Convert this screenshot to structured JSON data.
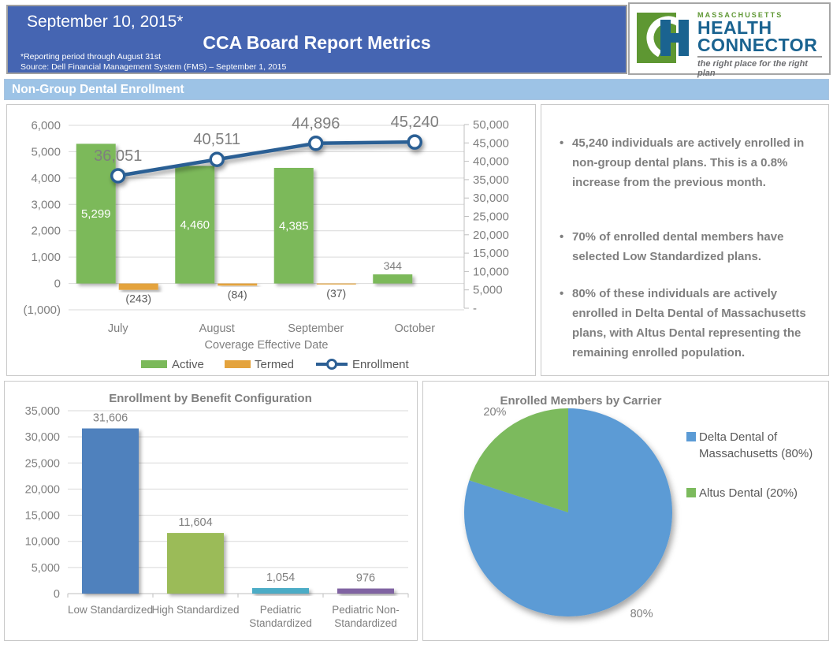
{
  "header": {
    "date": "September 10, 2015*",
    "title": "CCA Board Report Metrics",
    "footnote1": "*Reporting period through August 31st",
    "footnote2": "Source: Dell Financial Management System (FMS) – September 1, 2015",
    "bg_color": "#4565B2"
  },
  "logo": {
    "region": "MASSACHUSETTS",
    "line1": "HEALTH",
    "line2": "CONNECTOR",
    "tagline": "the right place for the right plan",
    "green": "#5E9732",
    "blue": "#1A6390"
  },
  "section_banner": {
    "label": "Non-Group Dental Enrollment",
    "bg_color": "#9DC3E6"
  },
  "bullets": [
    "45,240 individuals are actively enrolled in non-group dental plans. This is a 0.8% increase from the previous month.",
    "70% of enrolled dental members have selected Low Standardized plans.",
    "80% of these individuals are actively enrolled in Delta Dental of Massachusetts plans, with Altus Dental representing the remaining enrolled population."
  ],
  "chart_data": [
    {
      "id": "enrollment_trend",
      "type": "combo_bar_line",
      "title": "",
      "categories": [
        "July",
        "August",
        "September",
        "October"
      ],
      "xlabel": "Coverage Effective Date",
      "series": [
        {
          "name": "Active",
          "kind": "bar",
          "axis": "left",
          "color": "#7BB95A",
          "values": [
            5299,
            4460,
            4385,
            344
          ],
          "labels": [
            "5,299",
            "4,460",
            "4,385",
            "344"
          ]
        },
        {
          "name": "Termed",
          "kind": "bar",
          "axis": "left",
          "color": "#E4A33D",
          "values": [
            -243,
            -84,
            -37,
            null
          ],
          "labels": [
            "(243)",
            "(84)",
            "(37)",
            null
          ]
        },
        {
          "name": "Enrollment",
          "kind": "line",
          "axis": "right",
          "color": "#2C5F94",
          "values": [
            36051,
            40511,
            44896,
            45240
          ],
          "labels": [
            "36,051",
            "40,511",
            "44,896",
            "45,240"
          ]
        }
      ],
      "left_axis": {
        "min": -1000,
        "max": 6000,
        "step": 1000,
        "ticks": [
          "6,000",
          "5,000",
          "4,000",
          "3,000",
          "2,000",
          "1,000",
          "0",
          "(1,000)"
        ]
      },
      "right_axis": {
        "min": 0,
        "max": 50000,
        "step": 5000,
        "ticks": [
          "50,000",
          "45,000",
          "40,000",
          "35,000",
          "30,000",
          "25,000",
          "20,000",
          "15,000",
          "10,000",
          "5,000",
          "-"
        ]
      },
      "grid": true,
      "legend_position": "bottom"
    },
    {
      "id": "benefit_configuration",
      "type": "bar",
      "title": "Enrollment by Benefit Configuration",
      "categories": [
        [
          "Low Standardized"
        ],
        [
          "High Standardized"
        ],
        [
          "Pediatric",
          "Standardized"
        ],
        [
          "Pediatric Non-",
          "Standardized"
        ]
      ],
      "values": [
        31606,
        11604,
        1054,
        976
      ],
      "labels": [
        "31,606",
        "11,604",
        "1,054",
        "976"
      ],
      "colors": [
        "#4F81BD",
        "#9BBB59",
        "#4BACC6",
        "#8064A2"
      ],
      "ylim": [
        0,
        35000
      ],
      "y_axis": {
        "step": 5000,
        "ticks": [
          "0",
          "5,000",
          "10,000",
          "15,000",
          "20,000",
          "25,000",
          "30,000",
          "35,000"
        ]
      },
      "grid": true
    },
    {
      "id": "members_by_carrier",
      "type": "pie",
      "title": "Enrolled Members by Carrier",
      "slices": [
        {
          "name": "Delta Dental of Massachusetts (80%)",
          "legend_lines": [
            "Delta Dental of",
            "Massachusetts (80%)"
          ],
          "value": 80,
          "label": "80%",
          "color": "#5B9BD5"
        },
        {
          "name": "Altus Dental (20%)",
          "legend_lines": [
            "Altus Dental (20%)"
          ],
          "value": 20,
          "label": "20%",
          "color": "#7CBA5D"
        }
      ],
      "start_angle_deg": 0,
      "direction": "clockwise",
      "legend_position": "right"
    }
  ],
  "colors": {
    "text_gray": "#7F7F7F",
    "text_dark_gray": "#595959",
    "grid": "#D9D9D9",
    "axis": "#BFBFBF",
    "panel_border": "#C9C9C9"
  }
}
